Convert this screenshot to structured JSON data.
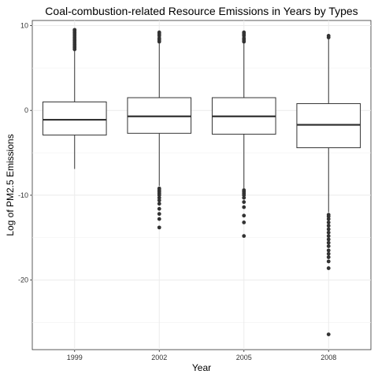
{
  "chart_data": {
    "type": "box",
    "title": "Coal-combustion-related Resource Emissions in Years by Types",
    "xlabel": "Year",
    "ylabel": "Log of PM2.5 Emissions",
    "categories": [
      "1999",
      "2002",
      "2005",
      "2008"
    ],
    "ylim": [
      -28.2,
      10.6
    ],
    "yticks": [
      10,
      0,
      -10,
      -20
    ],
    "ytick_labels": [
      "10",
      "0",
      "-10",
      "-20"
    ],
    "grid": true,
    "legend": "none",
    "boxes": [
      {
        "category": "1999",
        "whisker_low": -6.9,
        "q1": -2.9,
        "median": -1.1,
        "q3": 1.0,
        "whisker_high": 7.0,
        "outliers": [
          7.2,
          7.4,
          7.6,
          7.8,
          8.0,
          8.2,
          8.4,
          8.6,
          8.8,
          9.0,
          9.2,
          9.4,
          9.5
        ]
      },
      {
        "category": "2002",
        "whisker_low": -8.9,
        "q1": -2.7,
        "median": -0.7,
        "q3": 1.5,
        "whisker_high": 7.9,
        "outliers": [
          8.1,
          8.3,
          8.5,
          8.8,
          9.0,
          9.2,
          -9.2,
          -9.4,
          -9.6,
          -9.8,
          -10.0,
          -10.3,
          -10.6,
          -11.0,
          -11.6,
          -12.2,
          -12.8,
          -13.8
        ]
      },
      {
        "category": "2005",
        "whisker_low": -9.2,
        "q1": -2.8,
        "median": -0.7,
        "q3": 1.5,
        "whisker_high": 7.9,
        "outliers": [
          8.1,
          8.3,
          8.5,
          8.8,
          9.0,
          9.2,
          -9.4,
          -9.6,
          -9.8,
          -10.0,
          -10.3,
          -10.8,
          -11.4,
          -12.4,
          -13.2,
          -14.8
        ]
      },
      {
        "category": "2008",
        "whisker_low": -12.0,
        "q1": -4.4,
        "median": -1.7,
        "q3": 0.8,
        "whisker_high": 8.5,
        "outliers": [
          8.6,
          8.8,
          -12.3,
          -12.5,
          -12.8,
          -13.2,
          -13.6,
          -14.0,
          -14.4,
          -14.8,
          -15.2,
          -15.6,
          -16.0,
          -16.5,
          -16.9,
          -17.3,
          -17.8,
          -18.6,
          -26.4
        ]
      }
    ]
  }
}
